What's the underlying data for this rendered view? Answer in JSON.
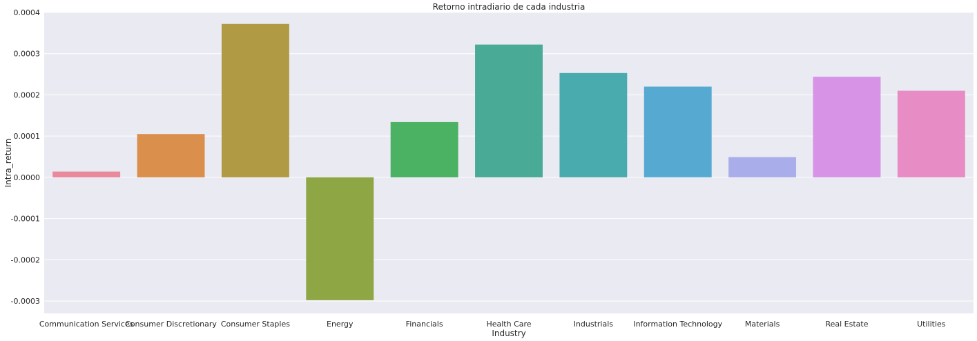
{
  "chart_data": {
    "type": "bar",
    "title": "Retorno intradiario de cada industria",
    "xlabel": "Industry",
    "ylabel": "Intra_return",
    "categories": [
      "Communication Services",
      "Consumer Discretionary",
      "Consumer Staples",
      "Energy",
      "Financials",
      "Health Care",
      "Industrials",
      "Information Technology",
      "Materials",
      "Real Estate",
      "Utilities"
    ],
    "values": [
      1.4e-05,
      0.000105,
      0.000372,
      -0.000298,
      0.000134,
      0.000322,
      0.000253,
      0.00022,
      4.9e-05,
      0.000244,
      0.00021
    ],
    "colors": [
      "#e8899c",
      "#db8f4c",
      "#b19a44",
      "#8fa644",
      "#4bb163",
      "#49ab96",
      "#4aabae",
      "#56aad1",
      "#a9adea",
      "#d793e5",
      "#e78cc5"
    ],
    "ylim": [
      -0.00033,
      0.0004
    ],
    "yticks": [
      -0.0003,
      -0.0002,
      -0.0001,
      0.0,
      0.0001,
      0.0002,
      0.0003,
      0.0004
    ],
    "ytick_labels": [
      "-0.0003",
      "-0.0002",
      "-0.0001",
      "0.0000",
      "0.0001",
      "0.0002",
      "0.0003",
      "0.0004"
    ],
    "grid": true,
    "background": "#eaeaf2",
    "grid_color": "#ffffff"
  }
}
